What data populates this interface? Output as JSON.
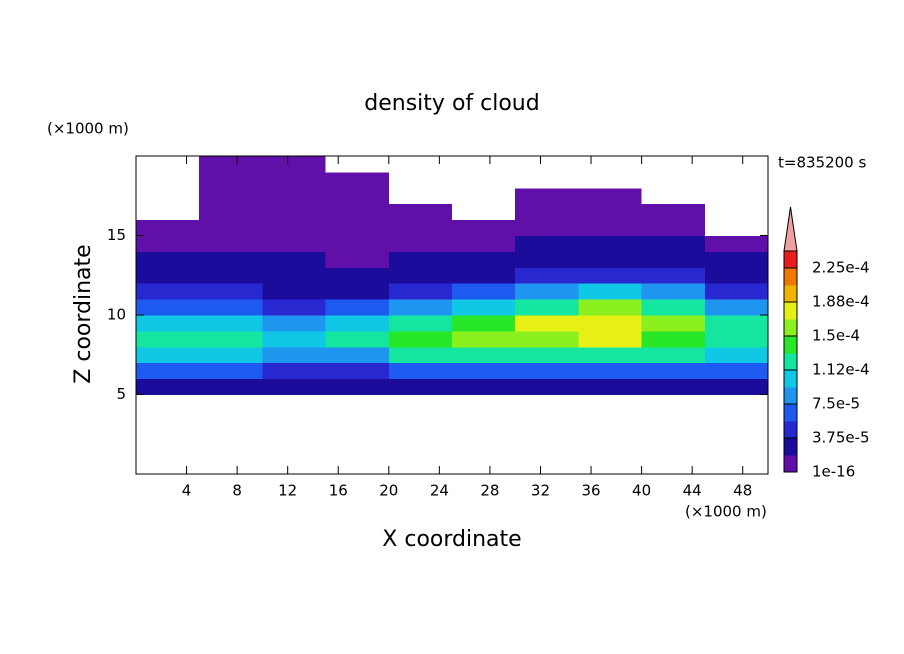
{
  "chart_data": {
    "type": "contour",
    "title": "density of cloud",
    "x_label": "X coordinate",
    "y_label": "Z coordinate",
    "x_unit": "(×1000 m)",
    "y_unit": "(×1000 m)",
    "annotation": "t=835200 s",
    "xlim": [
      0,
      50
    ],
    "ylim": [
      0,
      20
    ],
    "xticks": [
      4,
      8,
      12,
      16,
      20,
      24,
      28,
      32,
      36,
      40,
      44,
      48
    ],
    "yticks": [
      5,
      10,
      15
    ],
    "x_edges": [
      0,
      5,
      10,
      15,
      20,
      25,
      30,
      35,
      40,
      45,
      50
    ],
    "z_edges": [
      0,
      1,
      2,
      3,
      4,
      5,
      6,
      7,
      8,
      9,
      10,
      11,
      12,
      13,
      14,
      15,
      16,
      17,
      18,
      19,
      20
    ],
    "values": [
      [
        0,
        0,
        0,
        0,
        0,
        0,
        0,
        0,
        0,
        0
      ],
      [
        0,
        0,
        0,
        0,
        0,
        0,
        0,
        0,
        0,
        0
      ],
      [
        0,
        0,
        0,
        0,
        0,
        0,
        0,
        0,
        0,
        0
      ],
      [
        0,
        0,
        0,
        0,
        0,
        0,
        0,
        0,
        0,
        0
      ],
      [
        0,
        0,
        0,
        0,
        0,
        0,
        0,
        0,
        0,
        0
      ],
      [
        2e-05,
        2e-05,
        2e-05,
        2e-05,
        2e-05,
        2e-05,
        2e-05,
        2e-05,
        2e-05,
        2e-05
      ],
      [
        6e-05,
        6e-05,
        5e-05,
        5e-05,
        7e-05,
        7e-05,
        7e-05,
        7e-05,
        7e-05,
        6e-05
      ],
      [
        0.0001,
        0.0001,
        8e-05,
        9e-05,
        0.00012,
        0.00012,
        0.00012,
        0.00013,
        0.00012,
        0.0001
      ],
      [
        0.00013,
        0.00012,
        0.0001,
        0.00012,
        0.00014,
        0.00016,
        0.00016,
        0.00017,
        0.00015,
        0.00013
      ],
      [
        0.00011,
        0.0001,
        9e-05,
        0.0001,
        0.00012,
        0.00015,
        0.00017,
        0.00018,
        0.00016,
        0.00012
      ],
      [
        7e-05,
        6e-05,
        5e-05,
        6e-05,
        8e-05,
        0.00011,
        0.00013,
        0.00016,
        0.00013,
        8e-05
      ],
      [
        4e-05,
        4e-05,
        3e-05,
        3e-05,
        4e-05,
        6e-05,
        8e-05,
        0.0001,
        8e-05,
        5e-05
      ],
      [
        3e-05,
        3e-05,
        2e-05,
        2e-05,
        3e-05,
        3e-05,
        4e-05,
        5e-05,
        4e-05,
        3e-05
      ],
      [
        2e-05,
        2e-05,
        2e-05,
        1e-05,
        2e-05,
        2e-05,
        3e-05,
        3e-05,
        3e-05,
        2e-05
      ],
      [
        1e-05,
        1e-05,
        1e-05,
        1e-05,
        1e-05,
        1e-05,
        2e-05,
        2e-05,
        2e-05,
        1e-05
      ],
      [
        1e-05,
        1e-05,
        1e-05,
        1e-05,
        1e-05,
        1e-05,
        1e-05,
        1e-05,
        1e-05,
        0
      ],
      [
        0,
        1e-05,
        1e-05,
        1e-05,
        5e-06,
        0,
        1e-05,
        1e-05,
        1e-05,
        0
      ],
      [
        0,
        1e-05,
        1e-05,
        1e-05,
        0,
        0,
        5e-06,
        1e-05,
        0,
        0
      ],
      [
        0,
        5e-06,
        1e-05,
        1e-05,
        0,
        0,
        0,
        0,
        0,
        0
      ],
      [
        0,
        5e-06,
        1e-05,
        0,
        0,
        0,
        0,
        0,
        0,
        0
      ]
    ],
    "clim": [
      1e-16,
      0.00024375
    ],
    "colors": [
      "#6010a8",
      "#1c0c9c",
      "#2828d0",
      "#1e5af0",
      "#1e96f0",
      "#10c8e6",
      "#14e6a0",
      "#28e628",
      "#8cf01e",
      "#e6f014",
      "#f0b400",
      "#f07800",
      "#e81e1e"
    ],
    "over_color": "#f0a0a0",
    "cticks": [
      {
        "value": 1e-16,
        "label": "1e-16"
      },
      {
        "value": 3.75e-05,
        "label": "3.75e-5"
      },
      {
        "value": 7.5e-05,
        "label": "7.5e-5"
      },
      {
        "value": 0.0001125,
        "label": "1.12e-4"
      },
      {
        "value": 0.00015,
        "label": "1.5e-4"
      },
      {
        "value": 0.0001875,
        "label": "1.88e-4"
      },
      {
        "value": 0.000225,
        "label": "2.25e-4"
      }
    ]
  }
}
